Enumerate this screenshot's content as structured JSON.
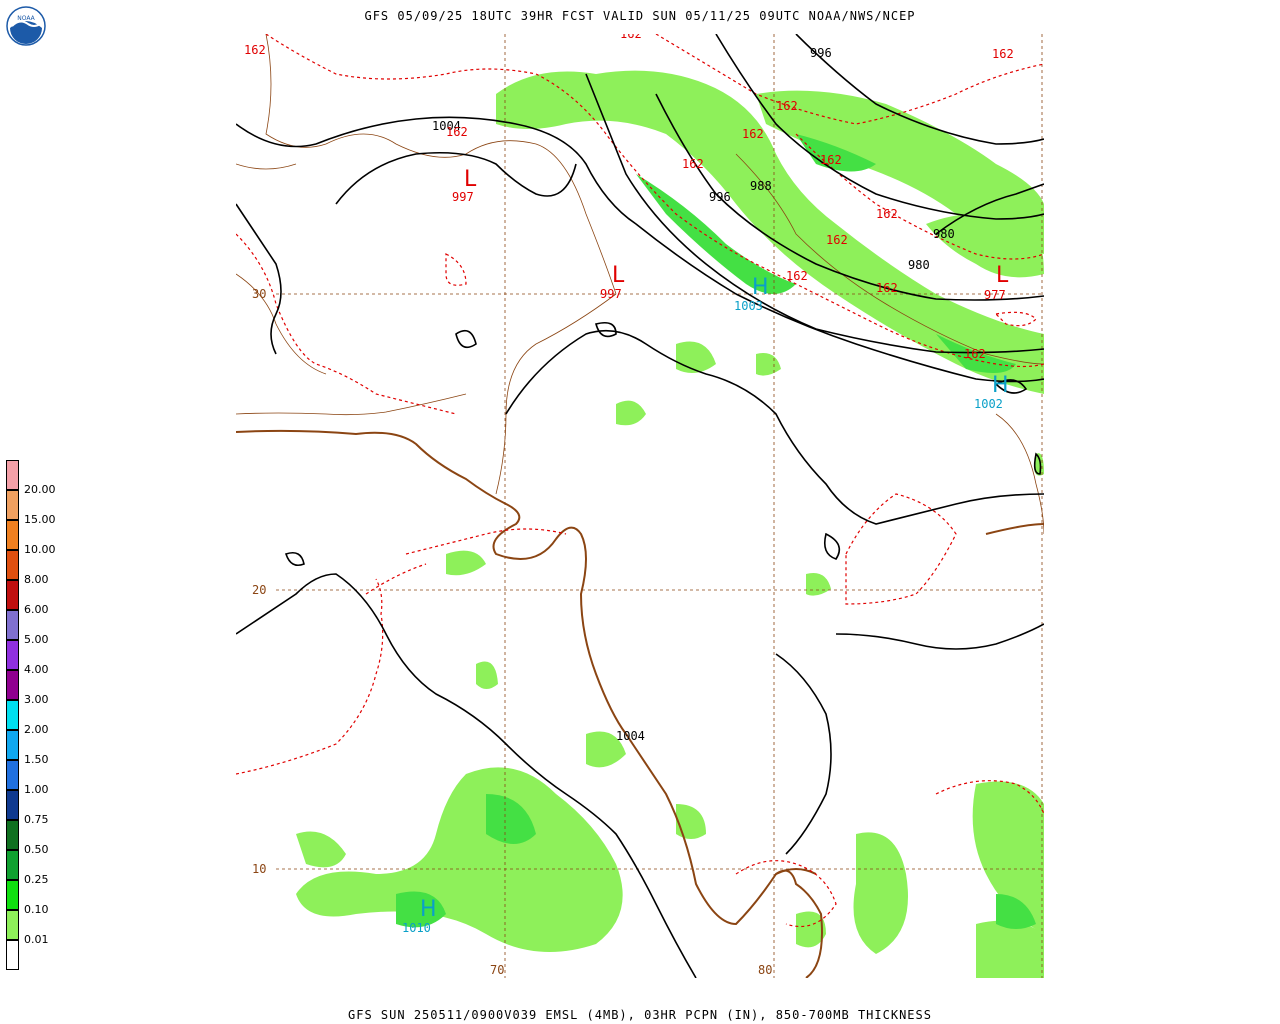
{
  "header": {
    "top_title": "GFS 05/09/25 18UTC 39HR FCST VALID SUN 05/11/25 09UTC NOAA/NWS/NCEP",
    "bottom_title": "GFS SUN 250511/0900V039 EMSL (4MB), 03HR PCPN (IN), 850-700MB THICKNESS",
    "logo_text": "NOAA"
  },
  "legend": {
    "items": [
      {
        "label": "20.00",
        "color": "#f4a0a8"
      },
      {
        "label": "15.00",
        "color": "#f0a060"
      },
      {
        "label": "10.00",
        "color": "#f08020"
      },
      {
        "label": "8.00",
        "color": "#e05010"
      },
      {
        "label": "6.00",
        "color": "#c01010"
      },
      {
        "label": "5.00",
        "color": "#8070d0"
      },
      {
        "label": "4.00",
        "color": "#9030e0"
      },
      {
        "label": "3.00",
        "color": "#900090"
      },
      {
        "label": "2.00",
        "color": "#00e0f0"
      },
      {
        "label": "1.50",
        "color": "#10a8f0"
      },
      {
        "label": "1.00",
        "color": "#2070e0"
      },
      {
        "label": "0.75",
        "color": "#103a90"
      },
      {
        "label": "0.50",
        "color": "#107020"
      },
      {
        "label": "0.25",
        "color": "#10a030"
      },
      {
        "label": "0.10",
        "color": "#10e010"
      },
      {
        "label": "0.01",
        "color": "#8ef05a"
      },
      {
        "label": "",
        "color": "#ffffff"
      }
    ]
  },
  "grid": {
    "lat_labels": [
      "30",
      "20",
      "10"
    ],
    "lon_labels": [
      "70",
      "80"
    ]
  },
  "pressure_labels": [
    "1004",
    "996",
    "996",
    "988",
    "980",
    "980",
    "1004"
  ],
  "thickness_labels": [
    "162",
    "162",
    "162",
    "162",
    "162",
    "162",
    "162",
    "162",
    "162",
    "162",
    "162",
    "162",
    "162"
  ],
  "systems": {
    "lows": [
      {
        "symbol": "L",
        "value": "997"
      },
      {
        "symbol": "L",
        "value": "997"
      },
      {
        "symbol": "L",
        "value": "977"
      }
    ],
    "highs": [
      {
        "symbol": "H",
        "value": "1003"
      },
      {
        "symbol": "H",
        "value": "1002"
      },
      {
        "symbol": "H",
        "value": "1010"
      }
    ]
  },
  "colors": {
    "isobar": "#000000",
    "thickness": "#e00000",
    "coast": "#8b4513",
    "grid": "#8b4513",
    "precip_light": "#8ef05a",
    "precip_mid": "#44e044",
    "high": "#0aa0c8",
    "low": "#e00000"
  }
}
